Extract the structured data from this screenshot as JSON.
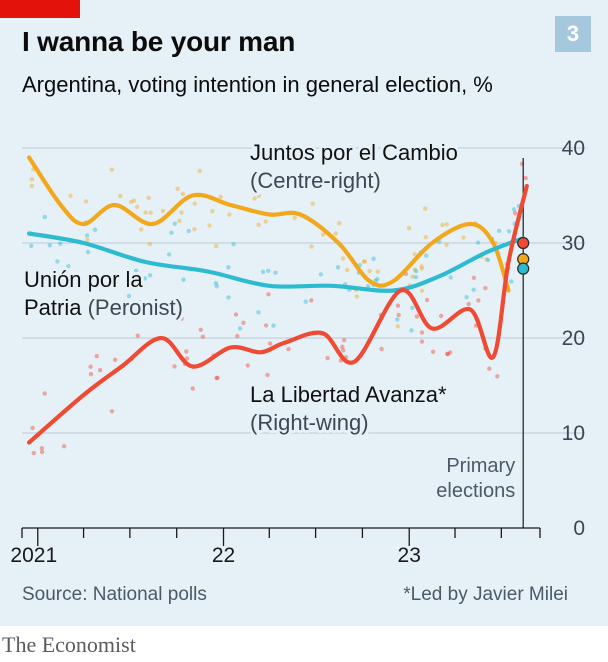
{
  "header": {
    "title": "I wanna be your man",
    "subtitle": "Argentina, voting intention in general election, %",
    "badge": "3"
  },
  "footer": {
    "source": "Source: National polls",
    "footnote": "*Led by Javier Milei",
    "brand": "The Economist"
  },
  "colors": {
    "background": "#e5f0f7",
    "accent_red": "#e3120b",
    "juntos": "#f2a81d",
    "union": "#2dbbd2",
    "libertad": "#ef4a34",
    "grid": "#b7cad8"
  },
  "chart_data": {
    "type": "line",
    "title": "I wanna be your man",
    "subtitle": "Argentina, voting intention in general election, %",
    "x_range": [
      "2020-12-01",
      "2023-09-15"
    ],
    "ylim": [
      0,
      40
    ],
    "y_ticks": [
      0,
      10,
      20,
      30,
      40
    ],
    "x_tick_labels": [
      {
        "label": "2021",
        "date": "2021-01-01"
      },
      {
        "label": "22",
        "date": "2022-01-01"
      },
      {
        "label": "23",
        "date": "2023-01-01"
      }
    ],
    "grid": "horizontal",
    "series": [
      {
        "name": "Juntos por el Cambio",
        "sublabel": "(Centre-right)",
        "color": "#f2a81d",
        "points": [
          [
            "2020-12-15",
            39
          ],
          [
            "2021-02-15",
            34
          ],
          [
            "2021-04-01",
            32
          ],
          [
            "2021-06-01",
            34
          ],
          [
            "2021-08-15",
            32
          ],
          [
            "2021-11-01",
            35
          ],
          [
            "2022-01-15",
            34
          ],
          [
            "2022-04-01",
            33
          ],
          [
            "2022-06-01",
            33
          ],
          [
            "2022-08-15",
            30
          ],
          [
            "2022-10-15",
            26
          ],
          [
            "2022-12-01",
            26
          ],
          [
            "2023-02-15",
            30
          ],
          [
            "2023-05-01",
            32
          ],
          [
            "2023-06-15",
            30
          ],
          [
            "2023-07-15",
            25
          ]
        ]
      },
      {
        "name": "Unión por la Patria",
        "sublabel": "(Peronist)",
        "color": "#2dbbd2",
        "points": [
          [
            "2020-12-15",
            31
          ],
          [
            "2021-04-01",
            30
          ],
          [
            "2021-08-01",
            28
          ],
          [
            "2021-12-01",
            27
          ],
          [
            "2022-04-01",
            25.5
          ],
          [
            "2022-08-01",
            25.5
          ],
          [
            "2022-12-01",
            25
          ],
          [
            "2023-03-01",
            26.5
          ],
          [
            "2023-06-01",
            29
          ],
          [
            "2023-08-13",
            30.5
          ]
        ]
      },
      {
        "name": "La Libertad Avanza*",
        "sublabel": "(Right-wing)",
        "color": "#ef4a34",
        "points": [
          [
            "2020-12-15",
            9
          ],
          [
            "2021-04-01",
            14
          ],
          [
            "2021-06-15",
            17
          ],
          [
            "2021-09-01",
            20
          ],
          [
            "2021-11-01",
            17
          ],
          [
            "2022-01-15",
            19
          ],
          [
            "2022-03-15",
            18.5
          ],
          [
            "2022-05-01",
            19.5
          ],
          [
            "2022-07-15",
            20.5
          ],
          [
            "2022-09-15",
            17.5
          ],
          [
            "2022-12-15",
            25
          ],
          [
            "2023-02-15",
            21
          ],
          [
            "2023-05-01",
            23
          ],
          [
            "2023-06-15",
            18
          ],
          [
            "2023-07-15",
            28
          ],
          [
            "2023-08-20",
            36
          ]
        ]
      }
    ],
    "annotations": [
      {
        "text": "Primary elections",
        "date": "2023-08-13"
      }
    ],
    "primary_results": [
      {
        "series": "La Libertad Avanza*",
        "value": 30
      },
      {
        "series": "Juntos por el Cambio",
        "value": 28.3
      },
      {
        "series": "Unión por la Patria",
        "value": 27.3
      }
    ]
  }
}
